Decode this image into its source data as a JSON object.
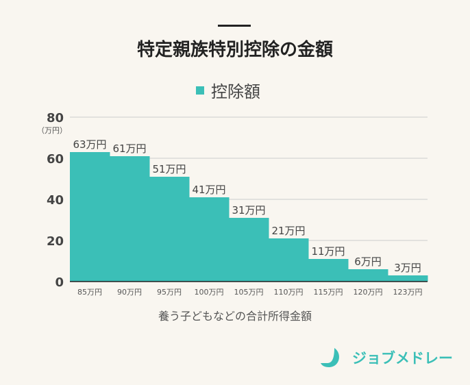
{
  "chart_data": {
    "type": "bar",
    "title": "特定親族特別控除の金額",
    "categories": [
      "85万円",
      "90万円",
      "95万円",
      "100万円",
      "105万円",
      "110万円",
      "115万円",
      "120万円",
      "123万円"
    ],
    "series": [
      {
        "name": "控除額",
        "values": [
          63,
          61,
          51,
          41,
          31,
          21,
          11,
          6,
          3
        ]
      }
    ],
    "data_labels": [
      "63万円",
      "61万円",
      "51万円",
      "41万円",
      "31万円",
      "21万円",
      "11万円",
      "6万円",
      "3万円"
    ],
    "xlabel": "養う子どもなどの合計所得金額",
    "ylabel": "（万円）",
    "ylim": [
      0,
      80
    ],
    "yticks": [
      0,
      20,
      40,
      60,
      80
    ],
    "grid": true,
    "legend": "top-center",
    "color": "#3bbfb7"
  },
  "brand": {
    "name": "ジョブメドレー"
  }
}
